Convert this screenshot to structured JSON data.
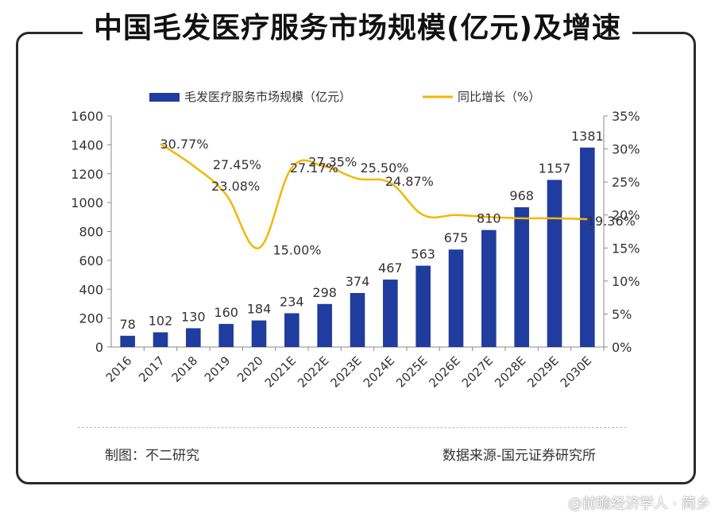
{
  "title": "中国毛发医疗服务市场规模(亿元)及增速",
  "footer": {
    "left": "制图：不二研究",
    "right": "数据来源-国元证券研究所",
    "watermark": "@前瞻经济学人 · 简乡"
  },
  "chart_data": {
    "type": "bar+line",
    "categories": [
      "2016",
      "2017",
      "2018",
      "2019",
      "2020",
      "2021E",
      "2022E",
      "2023E",
      "2024E",
      "2025E",
      "2026E",
      "2027E",
      "2028E",
      "2029E",
      "2030E"
    ],
    "series": [
      {
        "name": "毛发医疗服务市场规模（亿元）",
        "type": "bar",
        "axis": "left",
        "color": "#1f3c9e",
        "values": [
          78,
          102,
          130,
          160,
          184,
          234,
          298,
          374,
          467,
          563,
          675,
          810,
          968,
          1157,
          1381
        ],
        "labels": [
          "78",
          "102",
          "130",
          "160",
          "184",
          "234",
          "298",
          "374",
          "467",
          "563",
          "675",
          "810",
          "968",
          "1157",
          "1381"
        ]
      },
      {
        "name": "同比增长（%）",
        "type": "line",
        "axis": "right",
        "color": "#f2b705",
        "values": [
          null,
          30.77,
          27.45,
          23.08,
          15.0,
          27.17,
          27.35,
          25.5,
          24.87,
          20.0,
          20.0,
          19.7,
          19.5,
          19.5,
          19.36
        ],
        "annotations": [
          {
            "index": 1,
            "label": "30.77%"
          },
          {
            "index": 2,
            "label": "27.45%"
          },
          {
            "index": 3,
            "label": "23.08%"
          },
          {
            "index": 4,
            "label": "15.00%"
          },
          {
            "index": 5,
            "label": "27.17%"
          },
          {
            "index": 6,
            "label": "27.35%"
          },
          {
            "index": 7,
            "label": "25.50%"
          },
          {
            "index": 8,
            "label": "24.87%"
          },
          {
            "index": 14,
            "label": "19.36%"
          }
        ]
      }
    ],
    "y_left": {
      "min": 0,
      "max": 1600,
      "ticks": [
        "0",
        "200",
        "400",
        "600",
        "800",
        "1000",
        "1200",
        "1400",
        "1600"
      ]
    },
    "y_right": {
      "min": 0,
      "max": 35,
      "ticks": [
        "0%",
        "5%",
        "10%",
        "15%",
        "20%",
        "25%",
        "30%",
        "35%"
      ]
    },
    "legend_position": "top",
    "grid": false
  }
}
